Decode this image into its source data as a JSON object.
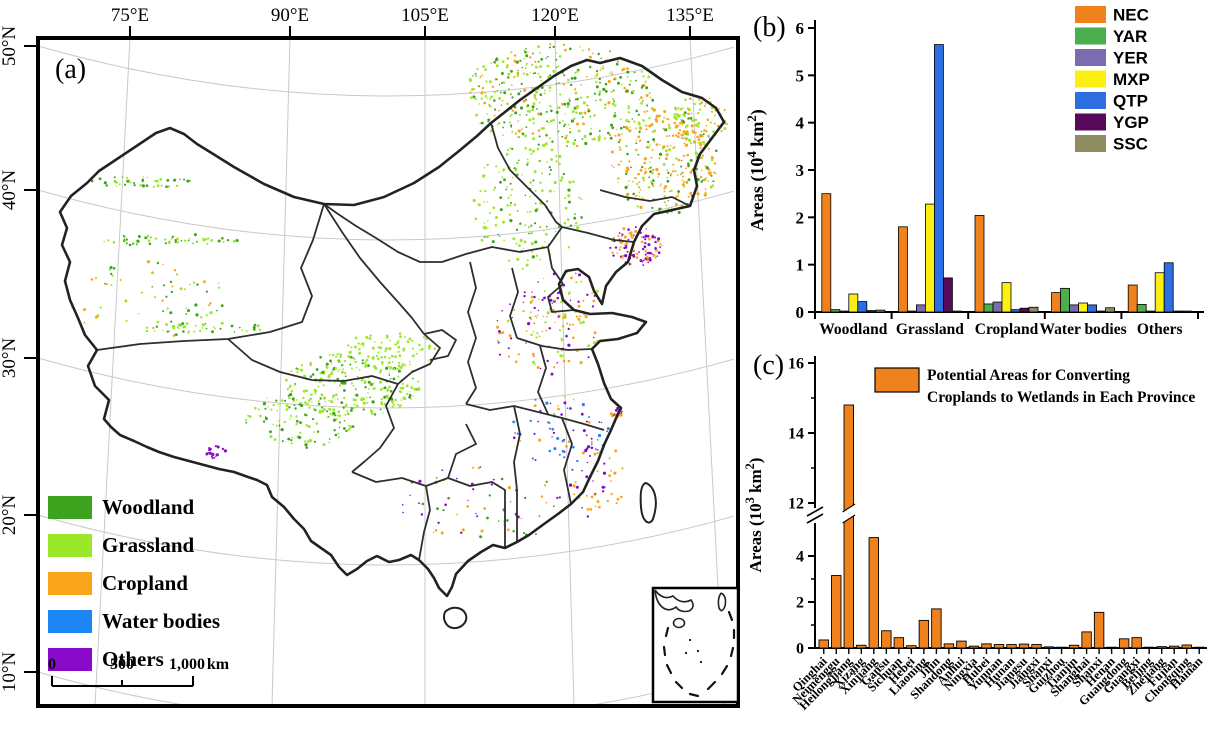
{
  "figure": {
    "panel_a": "(a)",
    "panel_b": "(b)",
    "panel_c": "(c)"
  },
  "map": {
    "top_ticks": [
      "75°E",
      "90°E",
      "105°E",
      "120°E",
      "135°E"
    ],
    "left_ticks": [
      "50°N",
      "40°N",
      "30°N",
      "20°N",
      "10°N"
    ],
    "legend": [
      {
        "label": "Woodland",
        "color": "#3DA21E"
      },
      {
        "label": "Grassland",
        "color": "#9BE82A"
      },
      {
        "label": "Cropland",
        "color": "#F9A41B"
      },
      {
        "label": "Water bodies",
        "color": "#1C87F2"
      },
      {
        "label": "Others",
        "color": "#8A0ACA"
      }
    ],
    "scale_bar": {
      "t0": "0",
      "t500": "500",
      "t1000": "1,000",
      "unit": "km"
    }
  },
  "chart_data": [
    {
      "id": "b",
      "type": "bar",
      "categories": [
        "Woodland",
        "Grassland",
        "Cropland",
        "Water bodies",
        "Others"
      ],
      "series": [
        {
          "name": "NEC",
          "color": "#F0821E",
          "values": [
            2.5,
            1.8,
            2.04,
            0.41,
            0.57
          ]
        },
        {
          "name": "YAR",
          "color": "#4AAD4E",
          "values": [
            0.05,
            0.02,
            0.17,
            0.5,
            0.16
          ]
        },
        {
          "name": "YER",
          "color": "#7D6BAF",
          "values": [
            0.02,
            0.15,
            0.21,
            0.15,
            0.02
          ]
        },
        {
          "name": "MXP",
          "color": "#FCF013",
          "values": [
            0.38,
            2.28,
            0.62,
            0.19,
            0.83
          ]
        },
        {
          "name": "QTP",
          "color": "#2D6FE0",
          "values": [
            0.22,
            5.65,
            0.05,
            0.15,
            1.04
          ]
        },
        {
          "name": "YGP",
          "color": "#570A5A",
          "values": [
            0.03,
            0.72,
            0.08,
            0.02,
            0.02
          ]
        },
        {
          "name": "SSC",
          "color": "#8F8C62",
          "values": [
            0.04,
            0.02,
            0.1,
            0.09,
            0.02
          ]
        }
      ],
      "ylabel": {
        "prefix": "Areas  (10",
        "sup": "4",
        "mid": " km",
        "sup2": "2",
        "suffix": ")"
      },
      "ylim": [
        0,
        6
      ],
      "yticks": [
        0,
        1,
        2,
        3,
        4,
        5,
        6
      ],
      "legend_position": "top-right",
      "grid": false
    },
    {
      "id": "c",
      "type": "bar",
      "color": "#F0821E",
      "legend": [
        "Potential Areas for Converting",
        "Croplands to Wetlands in Each Province"
      ],
      "categories": [
        "Qinghai",
        "Neimenggu",
        "Heilongjiang",
        "Xizang",
        "Xinjiang",
        "Gansu",
        "Sichuan",
        "Hebei",
        "Liaoning",
        "Jilin",
        "Shandong",
        "Anhui",
        "Ningxia",
        "Hubei",
        "Yunnan",
        "Hunan",
        "Jiangsu",
        "Jiangxi",
        "Shanxi",
        "Guizhou",
        "Tianjin",
        "Shanghai",
        "Shanxi",
        "Henan",
        "Guangdong",
        "Guangxi",
        "Beijing",
        "Zhejiang",
        "Fujian",
        "Chongqing",
        "Hainan"
      ],
      "values": [
        0.35,
        3.15,
        14.8,
        0.12,
        4.8,
        0.75,
        0.45,
        0.1,
        1.2,
        1.7,
        0.18,
        0.3,
        0.08,
        0.18,
        0.15,
        0.15,
        0.17,
        0.15,
        0.05,
        0.02,
        0.12,
        0.7,
        1.55,
        0.03,
        0.4,
        0.45,
        0.02,
        0.06,
        0.08,
        0.13,
        0.02
      ],
      "ylabel": {
        "prefix": "Areas  (10",
        "sup": "3",
        "mid": " km",
        "sup2": "2",
        "suffix": ")"
      },
      "ylim": [
        0,
        16
      ],
      "axis_break_between": [
        5,
        12
      ],
      "yticks_lower": [
        0,
        2,
        4
      ],
      "yticks_upper": [
        12,
        14,
        16
      ],
      "minor_ticks_lower": [
        1,
        3
      ],
      "minor_ticks_upper": [
        13,
        15
      ],
      "grid": false
    }
  ]
}
